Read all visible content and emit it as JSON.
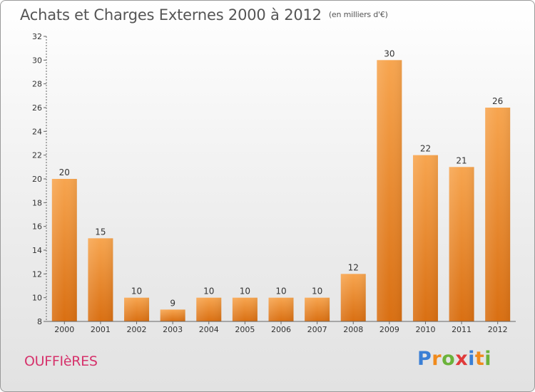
{
  "header": {
    "title": "Achats et Charges Externes 2000 à 2012",
    "unit": "(en milliers d'€)"
  },
  "footer": {
    "commune": "OUFFIèRES",
    "logo_text": "Proxiti",
    "logo_colors": [
      "#3a7fd5",
      "#f08a1c",
      "#6bb33a",
      "#e03a3a",
      "#3a7fd5",
      "#f08a1c",
      "#6bb33a"
    ]
  },
  "colors": {
    "bar_light": "#f7a54f",
    "bar_dark": "#d96f12",
    "axis": "#666666"
  },
  "chart_data": {
    "type": "bar",
    "title": "Achats et Charges Externes 2000 à 2012",
    "subtitle": "(en milliers d'€)",
    "categories": [
      "2000",
      "2001",
      "2002",
      "2003",
      "2004",
      "2005",
      "2006",
      "2007",
      "2008",
      "2009",
      "2010",
      "2011",
      "2012"
    ],
    "values": [
      20,
      15,
      10,
      9,
      10,
      10,
      10,
      10,
      12,
      30,
      22,
      21,
      26
    ],
    "ylim": [
      8,
      32
    ],
    "yticks": [
      8,
      10,
      12,
      14,
      16,
      18,
      20,
      22,
      24,
      26,
      28,
      30,
      32
    ],
    "xlabel": "",
    "ylabel": "",
    "grid": false,
    "legend": "none"
  }
}
